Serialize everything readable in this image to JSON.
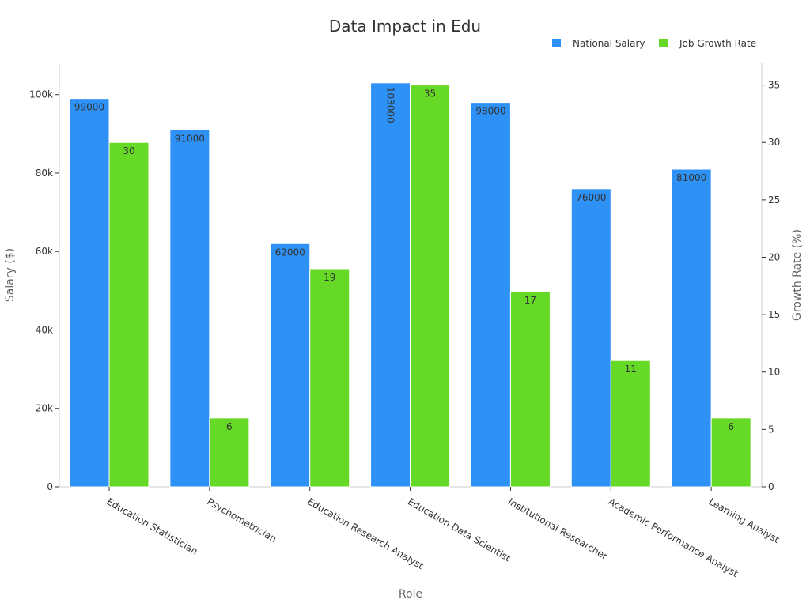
{
  "chart_data": {
    "type": "bar",
    "title": "Data Impact in Edu",
    "xlabel": "Role",
    "ylabel_left": "Salary ($)",
    "ylabel_right": "Growth Rate (%)",
    "categories": [
      "Education Statistician",
      "Psychometrician",
      "Education Research Analyst",
      "Education Data Scientist",
      "Institutional Researcher",
      "Academic Performance Analyst",
      "Learning Analyst"
    ],
    "series": [
      {
        "name": "National Salary",
        "axis": "left",
        "color": "#2e91f5",
        "values": [
          99000,
          91000,
          62000,
          103000,
          98000,
          76000,
          81000
        ]
      },
      {
        "name": "Job Growth Rate",
        "axis": "right",
        "color": "#66d927",
        "values": [
          30,
          6,
          19,
          35,
          17,
          11,
          6
        ]
      }
    ],
    "ylim_left": [
      0,
      108000
    ],
    "ylim_right": [
      0,
      36.9
    ],
    "yticks_left": [
      {
        "value": 0,
        "label": "0"
      },
      {
        "value": 20000,
        "label": "20k"
      },
      {
        "value": 40000,
        "label": "40k"
      },
      {
        "value": 60000,
        "label": "60k"
      },
      {
        "value": 80000,
        "label": "80k"
      },
      {
        "value": 100000,
        "label": "100k"
      }
    ],
    "yticks_right": [
      {
        "value": 0,
        "label": "0"
      },
      {
        "value": 5,
        "label": "5"
      },
      {
        "value": 10,
        "label": "10"
      },
      {
        "value": 15,
        "label": "15"
      },
      {
        "value": 20,
        "label": "20"
      },
      {
        "value": 25,
        "label": "25"
      },
      {
        "value": 30,
        "label": "30"
      },
      {
        "value": 35,
        "label": "35"
      }
    ],
    "grid": false,
    "legend_position": "top-right"
  }
}
